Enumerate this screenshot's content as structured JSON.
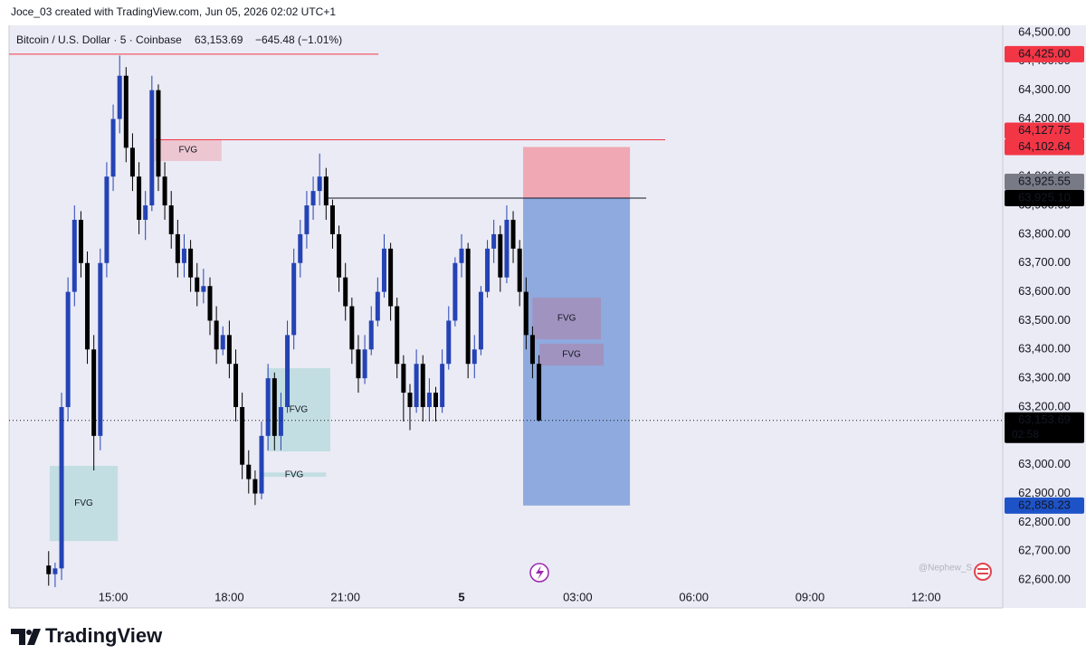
{
  "page": {
    "attribution": "Joce_03 created with TradingView.com, Jun 05, 2026 02:02 UTC+1",
    "footer": "TradingView",
    "watermark": "@Nephew_S"
  },
  "chart_data": {
    "type": "candlestick",
    "symbol": "Bitcoin / U.S. Dollar · 5 · Coinbase",
    "last": "63,153.69",
    "change": "−645.48 (−1.01%)",
    "up_color": "#2443b5",
    "down_color": "#000000",
    "xlim": [
      12.31,
      37.98
    ],
    "ylim": [
      62572,
      64525
    ],
    "xticks": [
      {
        "value": 15,
        "label": "15:00"
      },
      {
        "value": 18,
        "label": "18:00"
      },
      {
        "value": 21,
        "label": "21:00"
      },
      {
        "value": 24,
        "label": "5"
      },
      {
        "value": 27,
        "label": "03:00"
      },
      {
        "value": 30,
        "label": "06:00"
      },
      {
        "value": 33,
        "label": "09:00"
      },
      {
        "value": 36,
        "label": "12:00"
      }
    ],
    "yticks": [
      {
        "value": 62600,
        "label": "62,600.00"
      },
      {
        "value": 62700,
        "label": "62,700.00"
      },
      {
        "value": 62800,
        "label": "62,800.00"
      },
      {
        "value": 62900,
        "label": "62,900.00"
      },
      {
        "value": 63000,
        "label": "63,000.00"
      },
      {
        "value": 63100,
        "label": "63,100.00"
      },
      {
        "value": 63200,
        "label": "63,200.00"
      },
      {
        "value": 63300,
        "label": "63,300.00"
      },
      {
        "value": 63400,
        "label": "63,400.00"
      },
      {
        "value": 63500,
        "label": "63,500.00"
      },
      {
        "value": 63600,
        "label": "63,600.00"
      },
      {
        "value": 63700,
        "label": "63,700.00"
      },
      {
        "value": 63800,
        "label": "63,800.00"
      },
      {
        "value": 63900,
        "label": "63,900.00"
      },
      {
        "value": 64000,
        "label": "64,000.00"
      },
      {
        "value": 64100,
        "label": "64,100.00"
      },
      {
        "value": 64200,
        "label": "64,200.00"
      },
      {
        "value": 64300,
        "label": "64,300.00"
      },
      {
        "value": 64400,
        "label": "64,400.00"
      },
      {
        "value": 64500,
        "label": "64,500.00"
      }
    ],
    "x": [
      13.333,
      13.5,
      13.667,
      13.833,
      14.0,
      14.167,
      14.333,
      14.5,
      14.667,
      14.833,
      15.0,
      15.167,
      15.333,
      15.5,
      15.667,
      15.833,
      16.0,
      16.167,
      16.333,
      16.5,
      16.667,
      16.833,
      17.0,
      17.167,
      17.333,
      17.5,
      17.667,
      17.833,
      18.0,
      18.167,
      18.333,
      18.5,
      18.667,
      18.833,
      19.0,
      19.167,
      19.333,
      19.5,
      19.667,
      19.833,
      20.0,
      20.167,
      20.333,
      20.5,
      20.667,
      20.833,
      21.0,
      21.167,
      21.333,
      21.5,
      21.667,
      21.833,
      22.0,
      22.167,
      22.333,
      22.5,
      22.667,
      22.833,
      23.0,
      23.167,
      23.333,
      23.5,
      23.667,
      23.833,
      24.0,
      24.167,
      24.333,
      24.5,
      24.667,
      24.833,
      25.0,
      25.167,
      25.333,
      25.5,
      25.667,
      25.833,
      26.0
    ],
    "candles": [
      [
        62650,
        62700,
        62580,
        62620
      ],
      [
        62620,
        62660,
        62575,
        62640
      ],
      [
        62640,
        63250,
        62600,
        63200
      ],
      [
        63200,
        63650,
        63150,
        63600
      ],
      [
        63600,
        63900,
        63550,
        63850
      ],
      [
        63850,
        63880,
        63650,
        63700
      ],
      [
        63700,
        63740,
        63350,
        63400
      ],
      [
        63400,
        63450,
        62980,
        63100
      ],
      [
        63100,
        63750,
        63050,
        63700
      ],
      [
        63700,
        64050,
        63650,
        64000
      ],
      [
        64000,
        64250,
        63950,
        64200
      ],
      [
        64200,
        64420,
        64150,
        64350
      ],
      [
        64350,
        64380,
        64050,
        64100
      ],
      [
        64100,
        64150,
        63950,
        64000
      ],
      [
        64000,
        64050,
        63800,
        63850
      ],
      [
        63850,
        63950,
        63780,
        63900
      ],
      [
        63900,
        64350,
        63880,
        64300
      ],
      [
        64300,
        64320,
        63950,
        64000
      ],
      [
        64000,
        64050,
        63850,
        63900
      ],
      [
        63900,
        63950,
        63750,
        63800
      ],
      [
        63800,
        63850,
        63650,
        63700
      ],
      [
        63700,
        63800,
        63650,
        63750
      ],
      [
        63750,
        63780,
        63600,
        63650
      ],
      [
        63650,
        63700,
        63550,
        63600
      ],
      [
        63600,
        63680,
        63560,
        63620
      ],
      [
        63620,
        63650,
        63450,
        63500
      ],
      [
        63500,
        63550,
        63350,
        63400
      ],
      [
        63400,
        63480,
        63380,
        63450
      ],
      [
        63450,
        63500,
        63300,
        63350
      ],
      [
        63350,
        63400,
        63150,
        63200
      ],
      [
        63200,
        63250,
        62950,
        63000
      ],
      [
        63000,
        63050,
        62900,
        62950
      ],
      [
        62950,
        62980,
        62860,
        62900
      ],
      [
        62900,
        63150,
        62880,
        63100
      ],
      [
        63100,
        63350,
        63050,
        63300
      ],
      [
        63300,
        63320,
        63050,
        63100
      ],
      [
        63100,
        63250,
        63050,
        63200
      ],
      [
        63200,
        63500,
        63180,
        63450
      ],
      [
        63450,
        63750,
        63400,
        63700
      ],
      [
        63700,
        63850,
        63650,
        63800
      ],
      [
        63800,
        63950,
        63750,
        63900
      ],
      [
        63900,
        64000,
        63850,
        63950
      ],
      [
        63950,
        64080,
        63900,
        64000
      ],
      [
        64000,
        64030,
        63850,
        63900
      ],
      [
        63900,
        63920,
        63750,
        63800
      ],
      [
        63800,
        63830,
        63600,
        63650
      ],
      [
        63650,
        63700,
        63500,
        63550
      ],
      [
        63550,
        63580,
        63350,
        63400
      ],
      [
        63400,
        63450,
        63250,
        63300
      ],
      [
        63300,
        63450,
        63280,
        63400
      ],
      [
        63400,
        63550,
        63380,
        63500
      ],
      [
        63500,
        63650,
        63480,
        63600
      ],
      [
        63600,
        63800,
        63580,
        63750
      ],
      [
        63750,
        63770,
        63500,
        63550
      ],
      [
        63550,
        63580,
        63300,
        63350
      ],
      [
        63350,
        63380,
        63150,
        63250
      ],
      [
        63250,
        63280,
        63120,
        63200
      ],
      [
        63200,
        63400,
        63180,
        63350
      ],
      [
        63350,
        63380,
        63150,
        63200
      ],
      [
        63200,
        63300,
        63150,
        63250
      ],
      [
        63250,
        63270,
        63150,
        63200
      ],
      [
        63200,
        63400,
        63180,
        63350
      ],
      [
        63350,
        63550,
        63330,
        63500
      ],
      [
        63500,
        63720,
        63480,
        63700
      ],
      [
        63700,
        63800,
        63650,
        63750
      ],
      [
        63750,
        63770,
        63300,
        63350
      ],
      [
        63350,
        63450,
        63300,
        63400
      ],
      [
        63400,
        63620,
        63380,
        63600
      ],
      [
        63600,
        63780,
        63580,
        63750
      ],
      [
        63750,
        63850,
        63700,
        63800
      ],
      [
        63800,
        63830,
        63600,
        63650
      ],
      [
        63650,
        63900,
        63630,
        63850
      ],
      [
        63850,
        63880,
        63700,
        63750
      ],
      [
        63750,
        63780,
        63550,
        63600
      ],
      [
        63600,
        63650,
        63400,
        63450
      ],
      [
        63450,
        63480,
        63300,
        63350
      ],
      [
        63350,
        63380,
        63150,
        63153.69
      ]
    ],
    "lines": [
      {
        "price": 64425,
        "x": [
          12.31,
          21.85
        ],
        "color": "#f23645"
      },
      {
        "price": 64127.75,
        "x": [
          16.1,
          29.26
        ],
        "color": "#f23645"
      },
      {
        "price": 63925.1,
        "x": [
          20.45,
          28.77
        ],
        "color": "#131722"
      }
    ],
    "position": {
      "x": [
        25.59,
        28.35
      ],
      "stop": 64102.64,
      "entry": 63925.1,
      "target": 62858.23,
      "stop_color": "#efa8b4",
      "target_color": "#8eaadf"
    },
    "zones": [
      {
        "x": [
          16.07,
          17.8
        ],
        "y": [
          64054,
          64130
        ],
        "color": "#f23645",
        "label": "FVG"
      },
      {
        "x": [
          13.36,
          15.12
        ],
        "y": [
          62735,
          62996
        ],
        "color": "#22ab94",
        "label": "FVG"
      },
      {
        "x": [
          18.97,
          20.61
        ],
        "y": [
          63046,
          63335
        ],
        "color": "#22ab94",
        "label": "FVG"
      },
      {
        "x": [
          18.85,
          20.5
        ],
        "y": [
          62958,
          62973
        ],
        "color": "#22ab94",
        "label": "FVG"
      },
      {
        "x": [
          25.83,
          27.6
        ],
        "y": [
          63435,
          63580
        ],
        "color": "#f23645",
        "label": "FVG"
      },
      {
        "x": [
          26.01,
          27.67
        ],
        "y": [
          63344,
          63420
        ],
        "color": "#f23645",
        "label": "FVG"
      }
    ],
    "price_tags": [
      {
        "value": 64425,
        "label": "64,425.00",
        "color": "#f23645"
      },
      {
        "value": 64102.64,
        "label": "64,102.64",
        "color": "#f23645"
      },
      {
        "value": 64127.75,
        "label": "64,127.75",
        "color": "#f23645"
      },
      {
        "value": 63925.1,
        "label": "63,925.10",
        "color": "#000000"
      },
      {
        "value": 63925.55,
        "label": "63,925.55",
        "color": "#787b86"
      },
      {
        "value": 63153.69,
        "label": "63,153.69",
        "color": "#000000"
      },
      {
        "value": 62858.23,
        "label": "62,858.23",
        "color": "#1e53c8"
      }
    ],
    "countdown": "02:58"
  }
}
